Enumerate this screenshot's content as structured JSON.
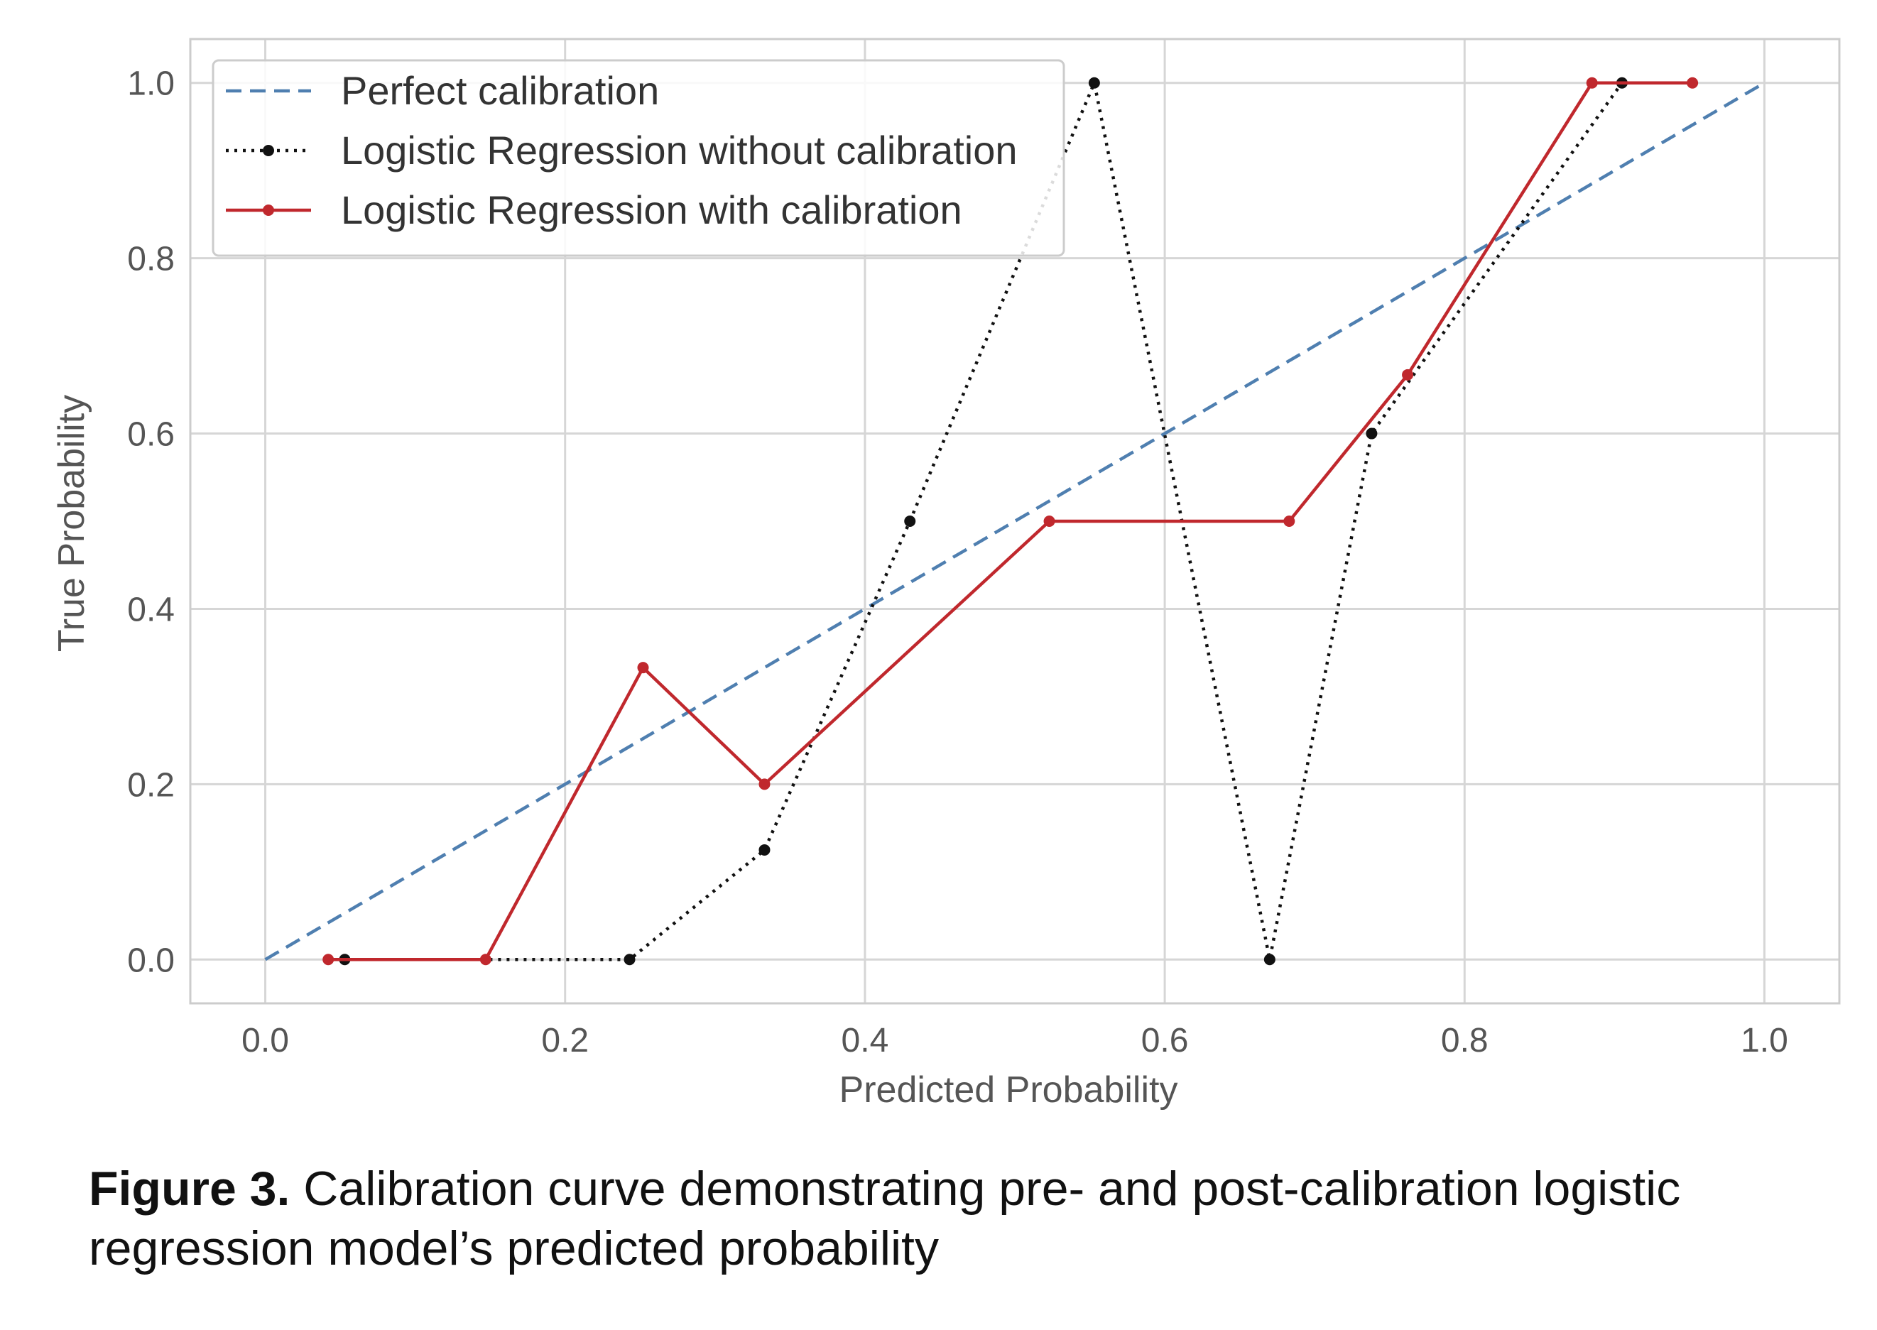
{
  "chart_data": {
    "type": "line",
    "title": "",
    "xlabel": "Predicted Probability",
    "ylabel": "True Probability",
    "xlim": [
      -0.05,
      1.05
    ],
    "ylim": [
      -0.05,
      1.05
    ],
    "xticks": [
      0.0,
      0.2,
      0.4,
      0.6,
      0.8,
      1.0
    ],
    "yticks": [
      0.0,
      0.2,
      0.4,
      0.6,
      0.8,
      1.0
    ],
    "xtick_labels": [
      "0.0",
      "0.2",
      "0.4",
      "0.6",
      "0.8",
      "1.0"
    ],
    "ytick_labels": [
      "0.0",
      "0.2",
      "0.4",
      "0.6",
      "0.8",
      "1.0"
    ],
    "grid": true,
    "legend_position": "top-left",
    "series": [
      {
        "name": "Perfect calibration",
        "style": "dashed",
        "color": "#4f7fb0",
        "marker": "none",
        "x": [
          0.0,
          1.0
        ],
        "y": [
          0.0,
          1.0
        ]
      },
      {
        "name": "Logistic Regression without calibration",
        "style": "dotted",
        "color": "#111111",
        "marker": "dot",
        "x": [
          0.053,
          0.243,
          0.333,
          0.43,
          0.553,
          0.67,
          0.738,
          0.905
        ],
        "y": [
          0.0,
          0.0,
          0.125,
          0.5,
          1.0,
          0.0,
          0.6,
          1.0
        ]
      },
      {
        "name": "Logistic Regression with calibration",
        "style": "solid",
        "color": "#c0282d",
        "marker": "dot",
        "x": [
          0.042,
          0.147,
          0.252,
          0.333,
          0.523,
          0.683,
          0.762,
          0.885,
          0.952
        ],
        "y": [
          0.0,
          0.0,
          0.333,
          0.2,
          0.5,
          0.5,
          0.667,
          1.0,
          1.0
        ]
      }
    ]
  },
  "caption": {
    "lead": "Figure 3.",
    "text": "Calibration curve demonstrating pre- and post-calibration logistic regression model’s predicted probability"
  }
}
